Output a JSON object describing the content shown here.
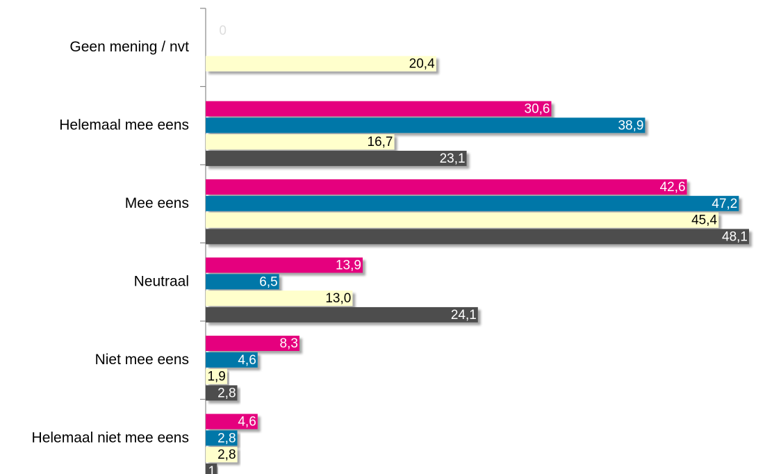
{
  "chart_data": {
    "type": "bar",
    "orientation": "horizontal",
    "categories": [
      "Geen mening / nvt",
      "Helemaal mee eens",
      "Mee eens",
      "Neutraal",
      "Niet mee eens",
      "Helemaal niet mee eens"
    ],
    "series": [
      {
        "color": "#e5007e",
        "label_color": "#ffffff",
        "values": [
          0,
          30.6,
          42.6,
          13.9,
          8.3,
          4.6
        ],
        "labels": [
          "0",
          "30,6",
          "42,6",
          "13,9",
          "8,3",
          "4,6"
        ]
      },
      {
        "color": "#0077a8",
        "label_color": "#ffffff",
        "values": [
          null,
          38.9,
          47.2,
          6.5,
          4.6,
          2.8
        ],
        "labels": [
          null,
          "38,9",
          "47,2",
          "6,5",
          "4,6",
          "2,8"
        ]
      },
      {
        "color": "#ffffcc",
        "label_color": "#000000",
        "values": [
          20.4,
          16.7,
          45.4,
          13.0,
          1.9,
          2.8
        ],
        "labels": [
          "20,4",
          "16,7",
          "45,4",
          "13,0",
          "1,9",
          "2,8"
        ]
      },
      {
        "color": "#4d4d4d",
        "label_color": "#ffffff",
        "values": [
          null,
          23.1,
          48.1,
          24.1,
          2.8,
          1.0
        ],
        "labels": [
          null,
          "23,1",
          "48,1",
          "24,1",
          "2,8",
          "1"
        ]
      }
    ],
    "xlim": [
      0,
      48.1
    ],
    "grid": false,
    "legend": "none"
  }
}
